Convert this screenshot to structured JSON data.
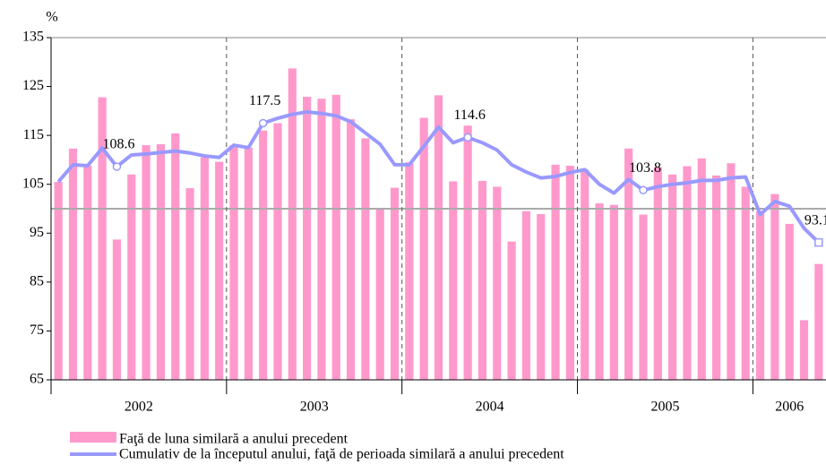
{
  "chart_data": {
    "type": "bar-line",
    "y_label": "%",
    "ylim": [
      65,
      135
    ],
    "yticks": [
      65,
      75,
      85,
      95,
      105,
      115,
      125,
      135
    ],
    "ref_line": 100,
    "groups": [
      {
        "label": "2002",
        "count": 12
      },
      {
        "label": "2003",
        "count": 12
      },
      {
        "label": "2004",
        "count": 12
      },
      {
        "label": "2005",
        "count": 12
      },
      {
        "label": "2006",
        "count": 5
      }
    ],
    "series": [
      {
        "name": "Faţă de luna similară a anului precedent",
        "type": "bar",
        "color": "#ff99cc",
        "values": [
          105.5,
          112.3,
          108.8,
          122.8,
          93.7,
          107,
          113,
          113.2,
          115.4,
          104.2,
          110.5,
          109.6,
          113,
          112.5,
          116,
          117.5,
          128.7,
          122.9,
          122.5,
          123.3,
          118.3,
          114.4,
          100,
          104.3,
          109.5,
          118.6,
          123.2,
          105.6,
          117,
          105.7,
          104.5,
          93.3,
          99.5,
          98.9,
          109,
          108.8,
          108,
          101.1,
          100.8,
          112.3,
          98.8,
          108.5,
          107,
          108.7,
          110.3,
          106.8,
          109.3,
          104.5,
          99.5,
          103,
          96.9,
          77.2,
          88.7
        ]
      },
      {
        "name": "Cumulativ de la începutul anului, faţă de perioada similară a anului precedent",
        "type": "line",
        "color": "#9999ff",
        "values": [
          105.5,
          109,
          108.8,
          112.4,
          108.6,
          111,
          111.2,
          111.5,
          111.8,
          111.4,
          110.8,
          110.5,
          113,
          112.5,
          117.5,
          118.5,
          119.3,
          119.8,
          119.5,
          119,
          117.8,
          115.5,
          113.2,
          109,
          109,
          112.8,
          116.7,
          113.5,
          114.6,
          113.5,
          112,
          109,
          107.5,
          106.3,
          106.6,
          107.4,
          108,
          105,
          103.2,
          106,
          103.8,
          104.5,
          105,
          105.3,
          105.8,
          105.8,
          106.3,
          106.5,
          98.8,
          101.5,
          100.5,
          96,
          93.1
        ],
        "labeled_points": [
          4,
          14,
          28,
          40,
          52
        ]
      }
    ]
  }
}
